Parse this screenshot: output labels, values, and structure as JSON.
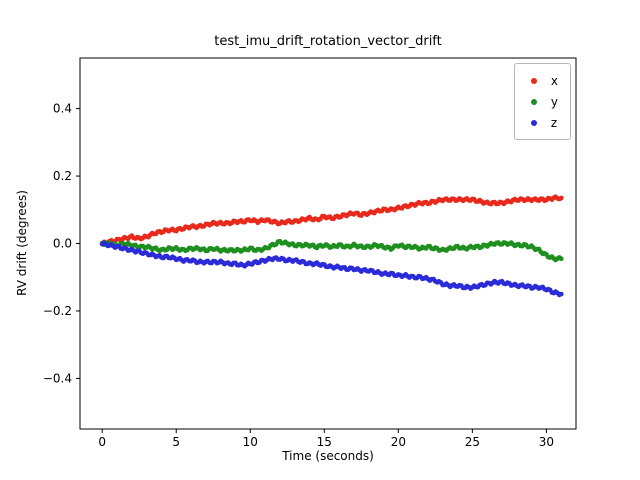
{
  "chart_data": {
    "type": "scatter",
    "title": "test_imu_drift_rotation_vector_drift",
    "xlabel": "Time (seconds)",
    "ylabel": "RV drift (degrees)",
    "xlim": [
      -1.5,
      32.0
    ],
    "ylim": [
      -0.55,
      0.55
    ],
    "xticks": [
      0,
      5,
      10,
      15,
      20,
      25,
      30
    ],
    "xtick_labels": [
      "0",
      "5",
      "10",
      "15",
      "20",
      "25",
      "30"
    ],
    "yticks": [
      -0.4,
      -0.2,
      0.0,
      0.2,
      0.4
    ],
    "ytick_labels": [
      "−0.4",
      "−0.2",
      "0.0",
      "0.2",
      "0.4"
    ],
    "grid": false,
    "legend_position": "upper right",
    "x": [
      0,
      0.5,
      1,
      1.5,
      2,
      2.5,
      3,
      3.5,
      4,
      4.5,
      5,
      5.5,
      6,
      6.5,
      7,
      7.5,
      8,
      8.5,
      9,
      9.5,
      10,
      10.5,
      11,
      11.5,
      12,
      12.5,
      13,
      13.5,
      14,
      14.5,
      15,
      15.5,
      16,
      16.5,
      17,
      17.5,
      18,
      18.5,
      19,
      19.5,
      20,
      20.5,
      21,
      21.5,
      22,
      22.5,
      23,
      23.5,
      24,
      24.5,
      25,
      25.5,
      26,
      26.5,
      27,
      27.5,
      28,
      28.5,
      29,
      29.5,
      30,
      30.5,
      31
    ],
    "series": [
      {
        "name": "x",
        "color": "#e8291c",
        "values": [
          0.0,
          0.005,
          0.01,
          0.015,
          0.02,
          0.015,
          0.02,
          0.03,
          0.035,
          0.04,
          0.04,
          0.045,
          0.05,
          0.05,
          0.055,
          0.06,
          0.06,
          0.06,
          0.065,
          0.065,
          0.07,
          0.065,
          0.07,
          0.065,
          0.06,
          0.065,
          0.065,
          0.07,
          0.075,
          0.07,
          0.08,
          0.075,
          0.08,
          0.085,
          0.09,
          0.085,
          0.09,
          0.095,
          0.1,
          0.1,
          0.105,
          0.11,
          0.115,
          0.12,
          0.12,
          0.125,
          0.13,
          0.13,
          0.13,
          0.13,
          0.13,
          0.125,
          0.12,
          0.12,
          0.12,
          0.125,
          0.13,
          0.13,
          0.13,
          0.13,
          0.13,
          0.135,
          0.135
        ]
      },
      {
        "name": "y",
        "color": "#1f8f1f",
        "values": [
          0.0,
          0.0,
          -0.005,
          0.0,
          -0.005,
          -0.01,
          -0.01,
          -0.015,
          -0.02,
          -0.015,
          -0.015,
          -0.02,
          -0.015,
          -0.015,
          -0.02,
          -0.015,
          -0.02,
          -0.02,
          -0.02,
          -0.02,
          -0.015,
          -0.02,
          -0.015,
          -0.005,
          0.005,
          0.0,
          -0.005,
          -0.005,
          -0.005,
          -0.01,
          -0.005,
          -0.01,
          -0.005,
          -0.01,
          -0.005,
          -0.01,
          -0.01,
          -0.005,
          -0.01,
          -0.015,
          -0.005,
          -0.01,
          -0.01,
          -0.015,
          -0.01,
          -0.015,
          -0.02,
          -0.015,
          -0.01,
          -0.015,
          -0.01,
          -0.01,
          -0.005,
          0.0,
          0.0,
          0.0,
          -0.005,
          -0.005,
          -0.01,
          -0.02,
          -0.035,
          -0.045,
          -0.045
        ]
      },
      {
        "name": "z",
        "color": "#2b2bd8",
        "values": [
          0.0,
          -0.005,
          -0.01,
          -0.015,
          -0.02,
          -0.025,
          -0.03,
          -0.035,
          -0.04,
          -0.04,
          -0.045,
          -0.05,
          -0.05,
          -0.055,
          -0.055,
          -0.055,
          -0.055,
          -0.06,
          -0.06,
          -0.065,
          -0.06,
          -0.055,
          -0.05,
          -0.045,
          -0.045,
          -0.05,
          -0.05,
          -0.055,
          -0.06,
          -0.06,
          -0.065,
          -0.07,
          -0.07,
          -0.075,
          -0.075,
          -0.08,
          -0.08,
          -0.085,
          -0.09,
          -0.09,
          -0.095,
          -0.095,
          -0.1,
          -0.1,
          -0.105,
          -0.11,
          -0.12,
          -0.125,
          -0.125,
          -0.13,
          -0.13,
          -0.125,
          -0.12,
          -0.115,
          -0.115,
          -0.12,
          -0.125,
          -0.125,
          -0.13,
          -0.13,
          -0.135,
          -0.145,
          -0.15
        ]
      }
    ]
  }
}
